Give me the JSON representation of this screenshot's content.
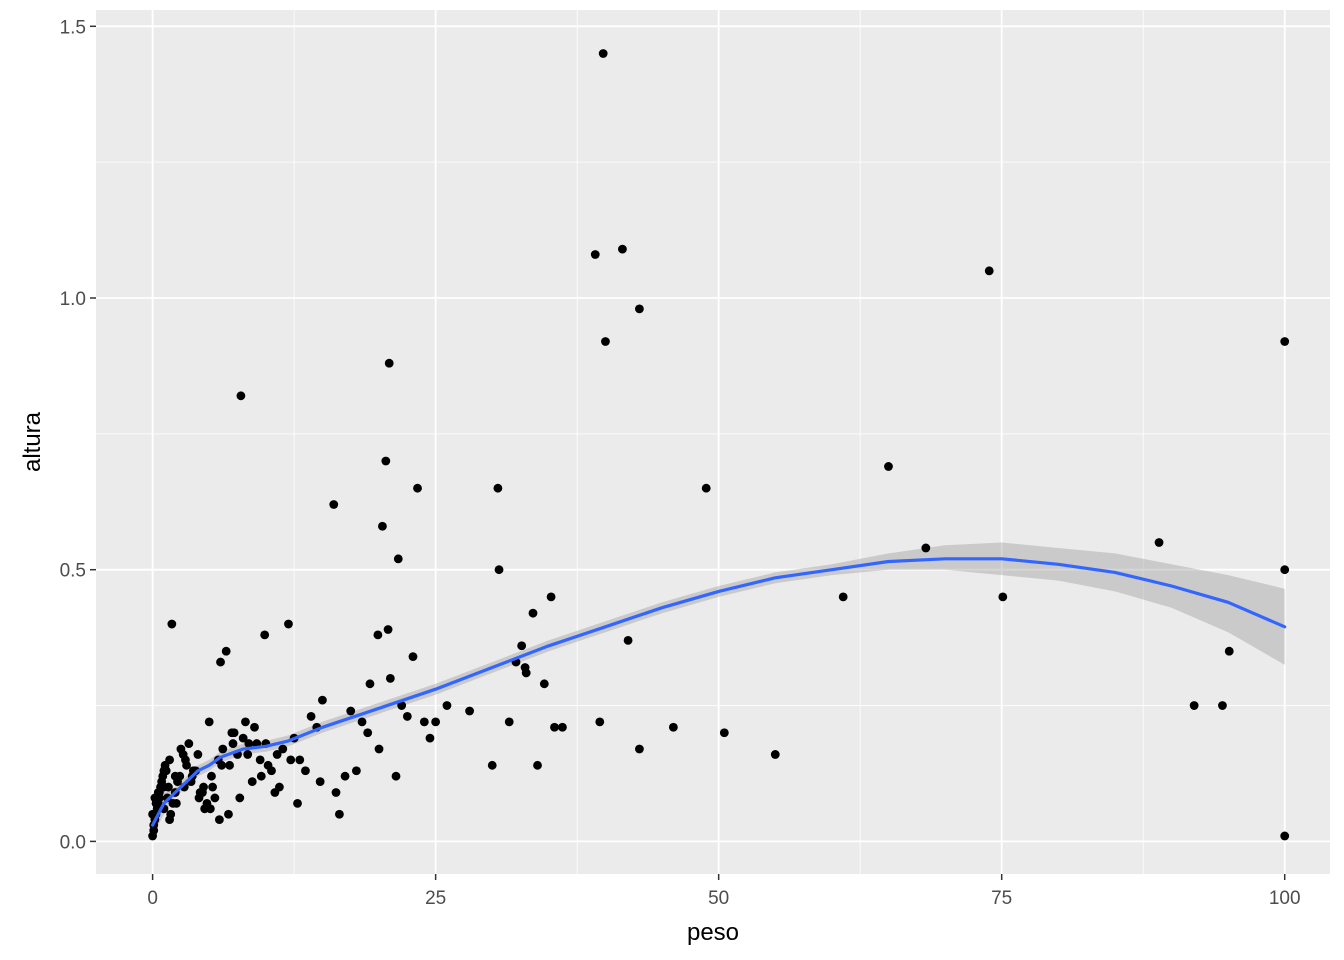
{
  "chart_data": {
    "type": "scatter",
    "title": "",
    "xlabel": "peso",
    "ylabel": "altura",
    "xlim": [
      -5,
      104
    ],
    "ylim": [
      -0.06,
      1.53
    ],
    "x_ticks": [
      0,
      25,
      50,
      75,
      100
    ],
    "x_tick_labels": [
      "0",
      "25",
      "50",
      "75",
      "100"
    ],
    "y_ticks": [
      0.0,
      0.5,
      1.0,
      1.5
    ],
    "y_tick_labels": [
      "0.0",
      "0.5",
      "1.0",
      "1.5"
    ],
    "grid": true,
    "legend": "none",
    "colors": {
      "panel": "#EBEBEB",
      "grid": "#FFFFFF",
      "points": "#000000",
      "smooth_line": "#3366FF",
      "ribbon": "#999999"
    },
    "series": [
      {
        "kind": "points",
        "x": [
          39.8,
          41.5,
          39.1,
          43.0,
          40.0,
          73.9,
          100.0,
          7.8,
          20.9,
          20.6,
          23.4,
          30.5,
          48.9,
          65.0,
          16.0,
          20.3,
          21.7,
          30.6,
          100.0,
          88.9,
          68.3,
          61.0,
          75.1,
          35.2,
          33.6,
          1.7,
          12.0,
          9.9,
          20.8,
          19.9,
          42.0,
          32.6,
          32.1,
          32.9,
          33.0,
          34.6,
          21.0,
          23.0,
          19.2,
          6.5,
          6.0,
          95.1,
          92.0,
          94.5,
          39.5,
          46.0,
          50.5,
          55.0,
          43.0,
          34.0,
          30.0,
          31.5,
          35.5,
          36.2,
          25.0,
          26.0,
          28.0,
          24.5,
          15.0,
          17.5,
          18.5,
          19.0,
          22.5,
          22.0,
          24.0,
          14.0,
          14.5,
          13.0,
          12.5,
          16.5,
          17.0,
          18.0,
          20.0,
          21.5,
          100.0,
          5.0,
          7.0,
          8.5,
          9.5,
          11.0,
          10.5,
          4.0,
          3.0,
          2.0,
          1.0,
          0.5,
          0.2,
          0.0,
          0.3,
          0.8,
          1.2,
          1.5,
          2.5,
          3.5,
          4.5,
          5.5,
          6.8,
          7.5,
          8.0,
          9.0,
          10.0,
          11.5,
          12.2,
          13.5,
          14.8,
          16.2,
          0.1,
          0.4,
          0.6,
          0.9,
          1.1,
          1.4,
          1.8,
          2.2,
          2.7,
          3.2,
          3.8,
          4.2,
          4.8,
          5.2,
          5.8,
          6.2,
          7.2,
          8.2,
          9.2,
          10.2,
          0.0,
          0.2,
          0.5,
          0.7,
          1.0,
          1.3,
          1.6,
          2.0,
          2.4,
          2.9,
          3.4,
          4.1,
          4.6,
          5.3,
          6.1,
          7.1,
          8.4,
          9.6,
          11.2,
          0.1,
          0.3,
          0.6,
          1.0,
          1.5,
          2.1,
          2.8,
          3.6,
          4.4,
          5.1,
          5.9,
          6.7,
          7.7,
          8.8,
          10.8,
          12.8
        ],
        "y": [
          1.45,
          1.09,
          1.08,
          0.98,
          0.92,
          1.05,
          0.92,
          0.82,
          0.88,
          0.7,
          0.65,
          0.65,
          0.65,
          0.69,
          0.62,
          0.58,
          0.52,
          0.5,
          0.5,
          0.55,
          0.54,
          0.45,
          0.45,
          0.45,
          0.42,
          0.4,
          0.4,
          0.38,
          0.39,
          0.38,
          0.37,
          0.36,
          0.33,
          0.32,
          0.31,
          0.29,
          0.3,
          0.34,
          0.29,
          0.35,
          0.33,
          0.35,
          0.25,
          0.25,
          0.22,
          0.21,
          0.2,
          0.16,
          0.17,
          0.14,
          0.14,
          0.22,
          0.21,
          0.21,
          0.22,
          0.25,
          0.24,
          0.19,
          0.26,
          0.24,
          0.22,
          0.2,
          0.23,
          0.25,
          0.22,
          0.23,
          0.21,
          0.15,
          0.19,
          0.05,
          0.12,
          0.13,
          0.17,
          0.12,
          0.01,
          0.22,
          0.2,
          0.18,
          0.15,
          0.16,
          0.13,
          0.16,
          0.14,
          0.12,
          0.1,
          0.09,
          0.08,
          0.05,
          0.07,
          0.11,
          0.13,
          0.15,
          0.17,
          0.12,
          0.1,
          0.08,
          0.14,
          0.16,
          0.19,
          0.21,
          0.18,
          0.17,
          0.15,
          0.13,
          0.11,
          0.09,
          0.03,
          0.06,
          0.09,
          0.12,
          0.14,
          0.1,
          0.07,
          0.11,
          0.16,
          0.18,
          0.13,
          0.09,
          0.07,
          0.12,
          0.15,
          0.17,
          0.2,
          0.22,
          0.18,
          0.14,
          0.01,
          0.04,
          0.07,
          0.1,
          0.13,
          0.08,
          0.05,
          0.09,
          0.12,
          0.15,
          0.11,
          0.08,
          0.06,
          0.1,
          0.14,
          0.18,
          0.16,
          0.12,
          0.1,
          0.02,
          0.05,
          0.08,
          0.06,
          0.04,
          0.07,
          0.1,
          0.13,
          0.09,
          0.06,
          0.04,
          0.05,
          0.08,
          0.11,
          0.09,
          0.07
        ]
      },
      {
        "kind": "smooth",
        "x": [
          0,
          1,
          2,
          3,
          4,
          5,
          6,
          8,
          10,
          12,
          15,
          20,
          25,
          30,
          35,
          40,
          45,
          50,
          55,
          60,
          65,
          70,
          75,
          80,
          85,
          90,
          95,
          100
        ],
        "y": [
          0.03,
          0.07,
          0.09,
          0.11,
          0.13,
          0.14,
          0.155,
          0.17,
          0.175,
          0.185,
          0.21,
          0.245,
          0.28,
          0.32,
          0.36,
          0.395,
          0.43,
          0.46,
          0.485,
          0.5,
          0.515,
          0.52,
          0.52,
          0.51,
          0.495,
          0.47,
          0.44,
          0.395
        ],
        "ymin": [
          0.01,
          0.05,
          0.08,
          0.1,
          0.12,
          0.13,
          0.145,
          0.16,
          0.165,
          0.175,
          0.2,
          0.235,
          0.27,
          0.31,
          0.35,
          0.385,
          0.42,
          0.45,
          0.475,
          0.49,
          0.5,
          0.5,
          0.49,
          0.48,
          0.46,
          0.43,
          0.385,
          0.325
        ],
        "ymax": [
          0.05,
          0.09,
          0.1,
          0.12,
          0.14,
          0.15,
          0.165,
          0.18,
          0.185,
          0.195,
          0.22,
          0.255,
          0.29,
          0.33,
          0.37,
          0.405,
          0.44,
          0.47,
          0.495,
          0.51,
          0.53,
          0.545,
          0.55,
          0.54,
          0.53,
          0.51,
          0.49,
          0.465
        ]
      }
    ]
  }
}
